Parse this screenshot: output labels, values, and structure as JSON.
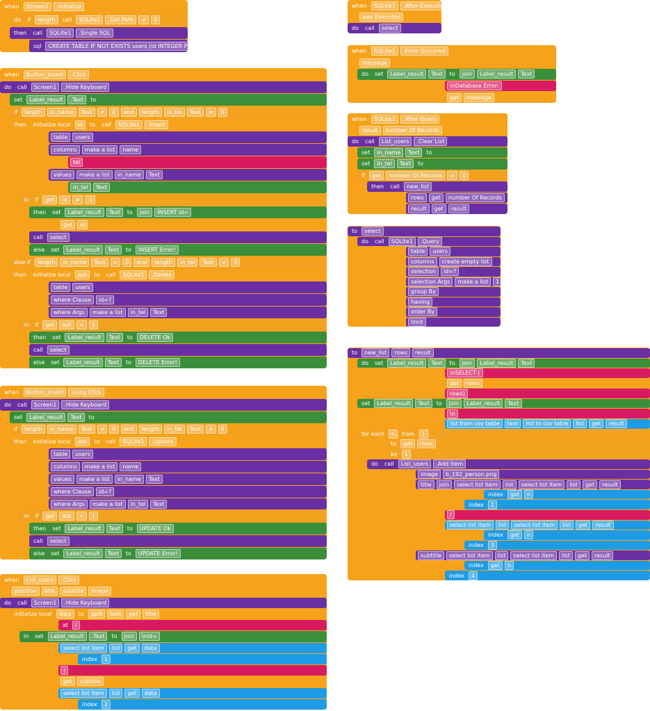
{
  "groups": [
    {
      "rows": [
        [
          "when",
          "Screen1",
          ".Initialize"
        ],
        [
          "do",
          "if",
          "length",
          "call",
          "SQLite1",
          ".Get Path",
          "≠",
          "0"
        ],
        [
          "then",
          "call",
          "SQLite1",
          ".Single SQL"
        ],
        [
          "sql",
          "CREATE TABLE IF NOT EXISTS users (id INTEGER PRI..."
        ]
      ]
    },
    {
      "rows": [
        [
          "when",
          "Button_insert",
          ".Click"
        ],
        [
          "do",
          "call",
          "Screen1",
          ".Hide Keyboard"
        ],
        [
          "set",
          "Label_result",
          ".Text",
          "to"
        ],
        [
          "if",
          "length",
          "in_name",
          "Text",
          "≠",
          "0",
          "and",
          "length",
          "in_tel",
          "Text",
          "≠",
          "0"
        ],
        [
          "then",
          "initialize local",
          "id",
          "to",
          "call",
          "SQLite1",
          ".Insert"
        ],
        [
          "table",
          "users"
        ],
        [
          "columns",
          "make a list",
          "name"
        ],
        [
          "tel"
        ],
        [
          "values",
          "make a list",
          "in_name",
          "Text"
        ],
        [
          "in_tel",
          "Text"
        ],
        [
          "in",
          "if",
          "get",
          "id",
          "≠",
          "-1"
        ],
        [
          "then",
          "set",
          "Label_result",
          "Text",
          "to",
          "join",
          "INSERT id="
        ],
        [
          "get",
          "id"
        ],
        [
          "call",
          "select"
        ],
        [
          "else",
          "set",
          "Label_result",
          "Text",
          "to",
          "INSERT Error!"
        ],
        [
          "else if",
          "length",
          "in_name",
          "Text",
          "=",
          "0",
          "and",
          "length",
          "in_tel",
          "Text",
          "≠",
          "0"
        ],
        [
          "then",
          "initialize local",
          "ask",
          "to",
          "call",
          "SQLite1",
          ".Delete"
        ],
        [
          "table",
          "users"
        ],
        [
          "where Clause",
          "id=?"
        ],
        [
          "where Args",
          "make a list",
          "in_tel",
          "Text"
        ],
        [
          "in",
          "if",
          "get",
          "ask",
          "=",
          "1"
        ],
        [
          "then",
          "set",
          "Label_result",
          "Text",
          "to",
          "DELETE Ok"
        ],
        [
          "call",
          "select"
        ],
        [
          "else",
          "set",
          "Label_result",
          "Text",
          "to",
          "DELETE Error!"
        ]
      ]
    },
    {
      "rows": [
        [
          "when",
          "Button_insert",
          ".Long Click"
        ],
        [
          "do",
          "call",
          "Screen1",
          ".Hide Keyboard"
        ],
        [
          "set",
          "Label_result",
          "Text",
          "to"
        ],
        [
          "if",
          "length",
          "in_name",
          "Text",
          "≠",
          "0",
          "and",
          "length",
          "in_tel",
          "Text",
          "≠",
          "0"
        ],
        [
          "then",
          "initialize local",
          "ask",
          "to",
          "call",
          "SQLite1",
          ".Update"
        ],
        [
          "table",
          "users"
        ],
        [
          "columns",
          "make a list",
          "name"
        ],
        [
          "values",
          "make a list",
          "in_name",
          "Text"
        ],
        [
          "where Clause",
          "id=?"
        ],
        [
          "where Args",
          "make a list",
          "in_tel",
          "Text"
        ],
        [
          "in",
          "if",
          "get",
          "ask",
          "=",
          "1"
        ],
        [
          "then",
          "set",
          "Label_result",
          "Text",
          "to",
          "UPDATE Ok"
        ],
        [
          "call",
          "select"
        ],
        [
          "else",
          "set",
          "Label_result",
          "Text",
          "to",
          "UPDATE Error!"
        ]
      ]
    },
    {
      "rows": [
        [
          "when",
          "List_users",
          ".Click"
        ],
        [
          "position",
          "title",
          "subtitle",
          "image"
        ],
        [
          "do",
          "call",
          "Screen1",
          ".Hide Keyboard"
        ],
        [
          "initialize local",
          "data",
          "to",
          "split",
          "text",
          "get",
          "title"
        ],
        [
          "at",
          "/"
        ],
        [
          "in",
          "set",
          "Label_result",
          ".Text",
          "to",
          "join",
          "\\nid="
        ],
        [
          "select list item",
          "list",
          "get",
          "data"
        ],
        [
          "index",
          "1"
        ],
        [
          ")"
        ],
        [
          "get",
          "subtitle"
        ],
        [
          "select list item",
          "list",
          "get",
          "data"
        ],
        [
          "index",
          "2"
        ]
      ]
    },
    {
      "rows": [
        [
          "when",
          "SQLite1",
          ".After Execution"
        ],
        [
          "was Executed"
        ],
        [
          "do",
          "call",
          "select"
        ]
      ]
    },
    {
      "rows": [
        [
          "when",
          "SQLite1",
          ".Error Occurred"
        ],
        [
          "message"
        ],
        [
          "do",
          "set",
          "Label_result",
          "Text",
          "to",
          "join",
          "Label_result",
          "Text"
        ],
        [
          "\\nDatabase Error: "
        ],
        [
          "get",
          "message"
        ]
      ]
    },
    {
      "rows": [
        [
          "when",
          "SQLite1",
          ".After Query"
        ],
        [
          "result",
          "number Of Records"
        ],
        [
          "do",
          "call",
          "List_users",
          ".Clear List"
        ],
        [
          "set",
          "in_name",
          "Text",
          "to"
        ],
        [
          "set",
          "in_tel",
          "Text",
          "to"
        ],
        [
          "if",
          "get",
          "number Of Records",
          ">",
          "0"
        ],
        [
          "then",
          "call",
          "new_list"
        ],
        [
          "rows",
          "get",
          "number Of Records"
        ],
        [
          "result",
          "get",
          "result"
        ]
      ]
    },
    {
      "rows": [
        [
          "to",
          "select"
        ],
        [
          "do",
          "call",
          "SQLite1",
          ".Query"
        ],
        [
          "table",
          "users"
        ],
        [
          "columns",
          "create empty list"
        ],
        [
          "selection",
          "id=?"
        ],
        [
          "selection Args",
          "make a list",
          "1"
        ],
        [
          "group By"
        ],
        [
          "having"
        ],
        [
          "order By"
        ],
        [
          "limit"
        ]
      ]
    },
    {
      "rows": [
        [
          "to",
          "new_list",
          "rows",
          "result"
        ],
        [
          "do",
          "set",
          "Label_result",
          "Text",
          "to",
          "join",
          "Label_result",
          "Text"
        ],
        [
          "\\nSELECT ("
        ],
        [
          "get",
          "rows"
        ],
        [
          "rows)"
        ],
        [
          "set",
          "Label_result",
          "Text",
          "to",
          "join",
          "Label_result",
          "Text"
        ],
        [
          "\\n"
        ],
        [
          "list from csv table",
          "text",
          "list to csv table",
          "list",
          "get",
          "result"
        ],
        [
          "for each",
          "n",
          "from",
          "1"
        ],
        [
          "to",
          "get",
          "rows"
        ],
        [
          "by",
          "1"
        ],
        [
          "do",
          "call",
          "List_users",
          ".Add Item"
        ],
        [
          "image",
          "b_192_person.png"
        ],
        [
          "title",
          "join",
          "select list item",
          "list",
          "select list item",
          "list",
          "get",
          "result"
        ],
        [
          "index",
          "get",
          "n"
        ],
        [
          "index",
          "1"
        ],
        [
          "/"
        ],
        [
          "select list item",
          "list",
          "select list item",
          "list",
          "get",
          "result"
        ],
        [
          "index",
          "get",
          "n"
        ],
        [
          "index",
          "3"
        ],
        [
          "subtitle",
          "select list item",
          "list",
          "select list item",
          "list",
          "get",
          "result"
        ],
        [
          "index",
          "get",
          "n"
        ],
        [
          "index",
          "4"
        ]
      ]
    }
  ]
}
